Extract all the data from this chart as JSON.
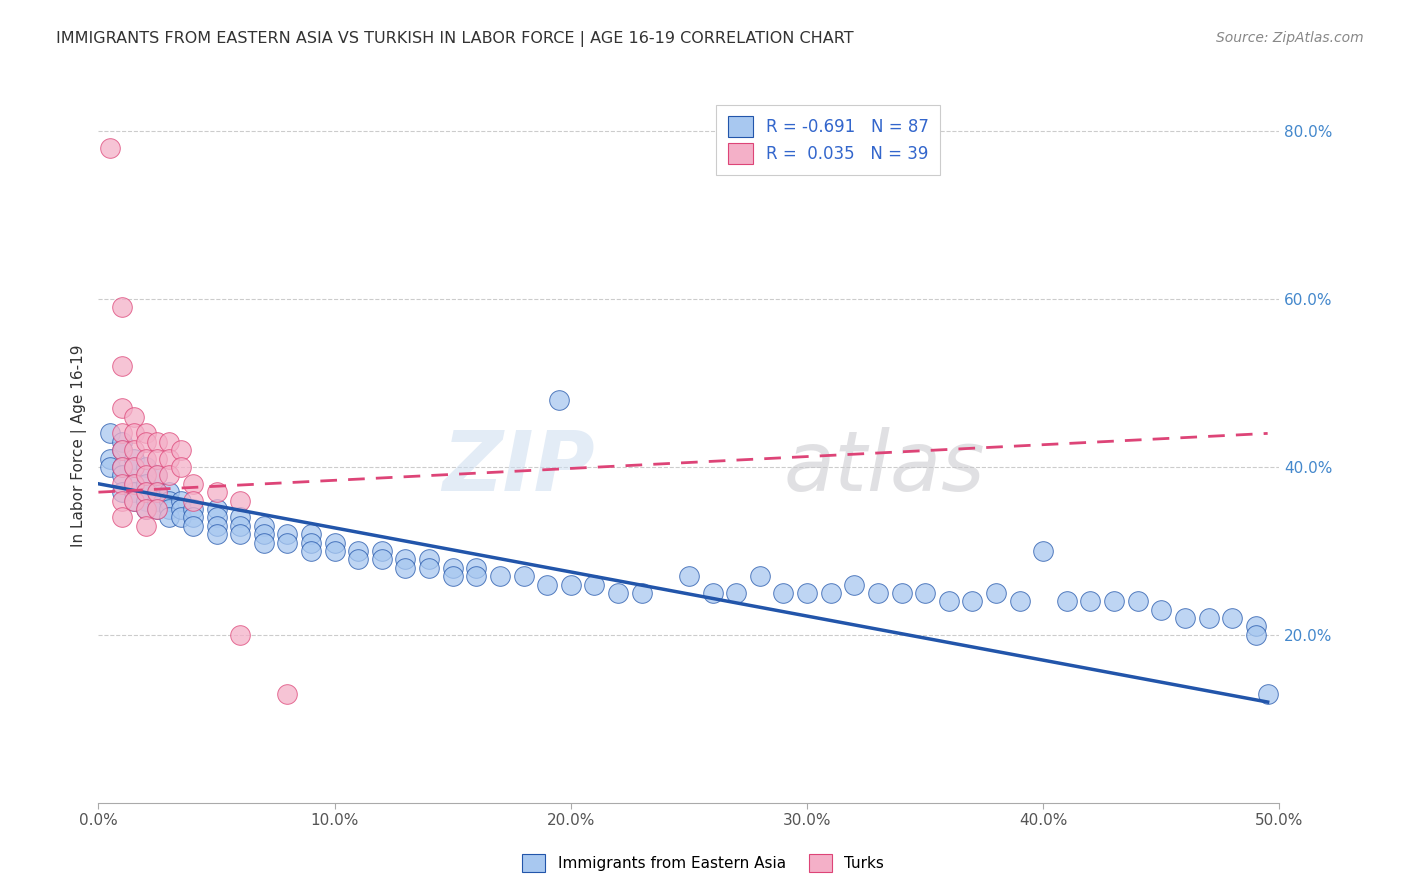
{
  "title": "IMMIGRANTS FROM EASTERN ASIA VS TURKISH IN LABOR FORCE | AGE 16-19 CORRELATION CHART",
  "source": "Source: ZipAtlas.com",
  "ylabel": "In Labor Force | Age 16-19",
  "xlim": [
    0.0,
    0.5
  ],
  "ylim": [
    0.0,
    0.85
  ],
  "xticks": [
    0.0,
    0.1,
    0.2,
    0.3,
    0.4,
    0.5
  ],
  "xticklabels": [
    "0.0%",
    "10.0%",
    "20.0%",
    "30.0%",
    "40.0%",
    "50.0%"
  ],
  "yticks_right": [
    0.2,
    0.4,
    0.6,
    0.8
  ],
  "ytick_right_labels": [
    "20.0%",
    "40.0%",
    "60.0%",
    "80.0%"
  ],
  "color_blue": "#a8c8f0",
  "color_pink": "#f4b0c8",
  "line_color_blue": "#2255aa",
  "line_color_pink": "#dd4477",
  "blue_scatter": [
    [
      0.005,
      0.44
    ],
    [
      0.005,
      0.41
    ],
    [
      0.005,
      0.4
    ],
    [
      0.01,
      0.43
    ],
    [
      0.01,
      0.42
    ],
    [
      0.01,
      0.4
    ],
    [
      0.01,
      0.39
    ],
    [
      0.01,
      0.37
    ],
    [
      0.015,
      0.41
    ],
    [
      0.015,
      0.4
    ],
    [
      0.015,
      0.38
    ],
    [
      0.015,
      0.37
    ],
    [
      0.015,
      0.36
    ],
    [
      0.02,
      0.4
    ],
    [
      0.02,
      0.38
    ],
    [
      0.02,
      0.37
    ],
    [
      0.02,
      0.36
    ],
    [
      0.02,
      0.35
    ],
    [
      0.025,
      0.39
    ],
    [
      0.025,
      0.37
    ],
    [
      0.025,
      0.36
    ],
    [
      0.025,
      0.35
    ],
    [
      0.03,
      0.37
    ],
    [
      0.03,
      0.36
    ],
    [
      0.03,
      0.35
    ],
    [
      0.03,
      0.34
    ],
    [
      0.035,
      0.36
    ],
    [
      0.035,
      0.35
    ],
    [
      0.035,
      0.34
    ],
    [
      0.04,
      0.35
    ],
    [
      0.04,
      0.34
    ],
    [
      0.04,
      0.33
    ],
    [
      0.05,
      0.35
    ],
    [
      0.05,
      0.34
    ],
    [
      0.05,
      0.33
    ],
    [
      0.05,
      0.32
    ],
    [
      0.06,
      0.34
    ],
    [
      0.06,
      0.33
    ],
    [
      0.06,
      0.32
    ],
    [
      0.07,
      0.33
    ],
    [
      0.07,
      0.32
    ],
    [
      0.07,
      0.31
    ],
    [
      0.08,
      0.32
    ],
    [
      0.08,
      0.31
    ],
    [
      0.09,
      0.32
    ],
    [
      0.09,
      0.31
    ],
    [
      0.09,
      0.3
    ],
    [
      0.1,
      0.31
    ],
    [
      0.1,
      0.3
    ],
    [
      0.11,
      0.3
    ],
    [
      0.11,
      0.29
    ],
    [
      0.12,
      0.3
    ],
    [
      0.12,
      0.29
    ],
    [
      0.13,
      0.29
    ],
    [
      0.13,
      0.28
    ],
    [
      0.14,
      0.29
    ],
    [
      0.14,
      0.28
    ],
    [
      0.15,
      0.28
    ],
    [
      0.15,
      0.27
    ],
    [
      0.16,
      0.28
    ],
    [
      0.16,
      0.27
    ],
    [
      0.17,
      0.27
    ],
    [
      0.18,
      0.27
    ],
    [
      0.19,
      0.26
    ],
    [
      0.195,
      0.48
    ],
    [
      0.2,
      0.26
    ],
    [
      0.21,
      0.26
    ],
    [
      0.22,
      0.25
    ],
    [
      0.23,
      0.25
    ],
    [
      0.25,
      0.27
    ],
    [
      0.26,
      0.25
    ],
    [
      0.27,
      0.25
    ],
    [
      0.28,
      0.27
    ],
    [
      0.29,
      0.25
    ],
    [
      0.3,
      0.25
    ],
    [
      0.31,
      0.25
    ],
    [
      0.32,
      0.26
    ],
    [
      0.33,
      0.25
    ],
    [
      0.34,
      0.25
    ],
    [
      0.35,
      0.25
    ],
    [
      0.36,
      0.24
    ],
    [
      0.37,
      0.24
    ],
    [
      0.38,
      0.25
    ],
    [
      0.39,
      0.24
    ],
    [
      0.4,
      0.3
    ],
    [
      0.41,
      0.24
    ],
    [
      0.42,
      0.24
    ],
    [
      0.43,
      0.24
    ],
    [
      0.44,
      0.24
    ],
    [
      0.45,
      0.23
    ],
    [
      0.46,
      0.22
    ],
    [
      0.47,
      0.22
    ],
    [
      0.48,
      0.22
    ],
    [
      0.49,
      0.21
    ],
    [
      0.49,
      0.2
    ],
    [
      0.495,
      0.13
    ]
  ],
  "pink_scatter": [
    [
      0.005,
      0.78
    ],
    [
      0.01,
      0.59
    ],
    [
      0.01,
      0.52
    ],
    [
      0.01,
      0.47
    ],
    [
      0.01,
      0.44
    ],
    [
      0.01,
      0.42
    ],
    [
      0.01,
      0.4
    ],
    [
      0.01,
      0.38
    ],
    [
      0.01,
      0.36
    ],
    [
      0.01,
      0.34
    ],
    [
      0.015,
      0.46
    ],
    [
      0.015,
      0.44
    ],
    [
      0.015,
      0.42
    ],
    [
      0.015,
      0.4
    ],
    [
      0.015,
      0.38
    ],
    [
      0.015,
      0.36
    ],
    [
      0.02,
      0.44
    ],
    [
      0.02,
      0.43
    ],
    [
      0.02,
      0.41
    ],
    [
      0.02,
      0.39
    ],
    [
      0.02,
      0.37
    ],
    [
      0.02,
      0.35
    ],
    [
      0.02,
      0.33
    ],
    [
      0.025,
      0.43
    ],
    [
      0.025,
      0.41
    ],
    [
      0.025,
      0.39
    ],
    [
      0.025,
      0.37
    ],
    [
      0.025,
      0.35
    ],
    [
      0.03,
      0.43
    ],
    [
      0.03,
      0.41
    ],
    [
      0.03,
      0.39
    ],
    [
      0.035,
      0.42
    ],
    [
      0.035,
      0.4
    ],
    [
      0.04,
      0.38
    ],
    [
      0.04,
      0.36
    ],
    [
      0.05,
      0.37
    ],
    [
      0.06,
      0.36
    ],
    [
      0.06,
      0.2
    ],
    [
      0.08,
      0.13
    ]
  ],
  "blue_line": [
    0.0,
    0.495,
    0.38,
    0.12
  ],
  "pink_line": [
    0.0,
    0.495,
    0.37,
    0.44
  ]
}
